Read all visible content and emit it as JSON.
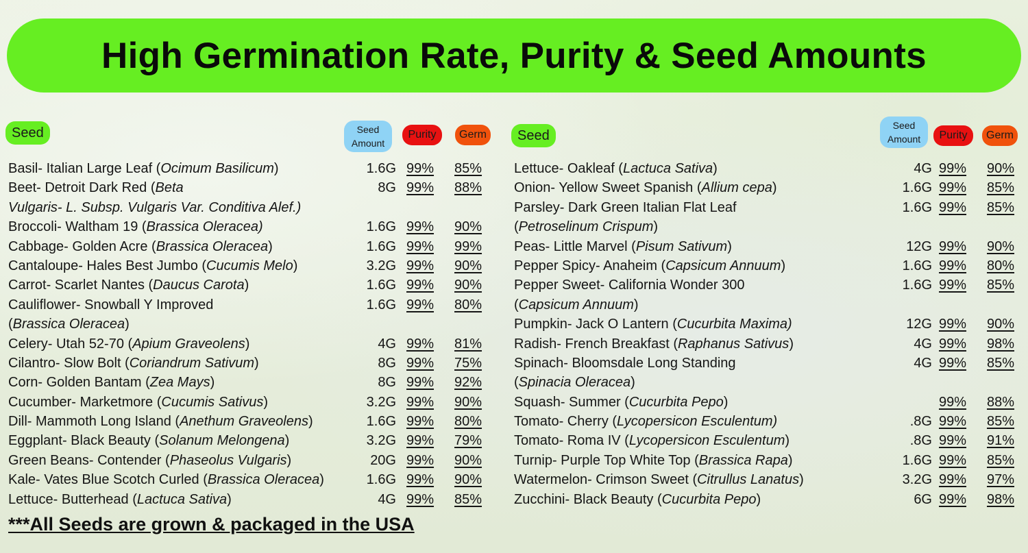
{
  "title": "High Germination Rate, Purity & Seed Amounts",
  "headers": {
    "seed": "Seed",
    "amount": "Seed Amount",
    "purity": "Purity",
    "germ": "Germ"
  },
  "colors": {
    "title_bg": "#66ee22",
    "seed_pill": "#66ee22",
    "amount_pill": "#8fd3f5",
    "purity_pill": "#e81111",
    "germ_pill": "#f0520c"
  },
  "left": [
    {
      "l1": [
        [
          "Basil- Italian Large Leaf (",
          0
        ],
        [
          "Ocimum Basilicum",
          1
        ],
        [
          ")",
          0
        ]
      ],
      "amount": "1.6G",
      "purity": "99%",
      "germ": "85%"
    },
    {
      "l1": [
        [
          "Beet- Detroit Dark Red (",
          0
        ],
        [
          "Beta",
          1
        ]
      ],
      "l2": [
        [
          "Vulgaris- L. Subsp. Vulgaris Var. Conditiva Alef.)",
          1
        ]
      ],
      "amount": "8G",
      "purity": "99%",
      "germ": "88%"
    },
    {
      "l1": [
        [
          "Broccoli- Waltham 19 (",
          0
        ],
        [
          "Brassica Oleracea)",
          1
        ]
      ],
      "amount": "1.6G",
      "purity": "99%",
      "germ": "90%"
    },
    {
      "l1": [
        [
          "Cabbage- Golden Acre (",
          0
        ],
        [
          "Brassica Oleracea",
          1
        ],
        [
          ")",
          0
        ]
      ],
      "amount": "1.6G",
      "purity": "99%",
      "germ": "99%"
    },
    {
      "l1": [
        [
          "Cantaloupe- Hales Best Jumbo (",
          0
        ],
        [
          "Cucumis Melo",
          1
        ],
        [
          ")",
          0
        ]
      ],
      "amount": "3.2G",
      "purity": "99%",
      "germ": "90%"
    },
    {
      "l1": [
        [
          "Carrot- Scarlet Nantes (",
          0
        ],
        [
          "Daucus Carota",
          1
        ],
        [
          ")",
          0
        ]
      ],
      "amount": "1.6G",
      "purity": "99%",
      "germ": "90%"
    },
    {
      "l1": [
        [
          "Cauliflower- Snowball Y Improved",
          0
        ]
      ],
      "l2": [
        [
          "(",
          0
        ],
        [
          "Brassica Oleracea",
          1
        ],
        [
          ")",
          0
        ]
      ],
      "amount": "1.6G",
      "purity": "99%",
      "germ": "80%"
    },
    {
      "l1": [
        [
          "Celery- Utah 52-70 (",
          0
        ],
        [
          "Apium Graveolens",
          1
        ],
        [
          ")",
          0
        ]
      ],
      "amount": "4G",
      "purity": "99%",
      "germ": "81%"
    },
    {
      "l1": [
        [
          "Cilantro- Slow Bolt (",
          0
        ],
        [
          "Coriandrum Sativum",
          1
        ],
        [
          ")",
          0
        ]
      ],
      "amount": "8G",
      "purity": "99%",
      "germ": "75%"
    },
    {
      "l1": [
        [
          "Corn- Golden Bantam (",
          0
        ],
        [
          "Zea Mays",
          1
        ],
        [
          ")",
          0
        ]
      ],
      "amount": "8G",
      "purity": "99%",
      "germ": "92%"
    },
    {
      "l1": [
        [
          "Cucumber- Marketmore (",
          0
        ],
        [
          "Cucumis Sativus",
          1
        ],
        [
          ")",
          0
        ]
      ],
      "amount": "3.2G",
      "purity": "99%",
      "germ": "90%"
    },
    {
      "l1": [
        [
          "Dill- Mammoth Long Island (",
          0
        ],
        [
          "Anethum Graveolens",
          1
        ],
        [
          ")",
          0
        ]
      ],
      "amount": "1.6G",
      "purity": "99%",
      "germ": "80%"
    },
    {
      "l1": [
        [
          "Eggplant- Black Beauty (",
          0
        ],
        [
          "Solanum Melongena",
          1
        ],
        [
          ")",
          0
        ]
      ],
      "amount": "3.2G",
      "purity": "99%",
      "germ": "79%"
    },
    {
      "l1": [
        [
          "Green Beans- Contender (",
          0
        ],
        [
          "Phaseolus Vulgaris",
          1
        ],
        [
          ")",
          0
        ]
      ],
      "amount": "20G",
      "purity": "99%",
      "germ": "90%"
    },
    {
      "l1": [
        [
          "Kale- Vates Blue Scotch Curled (",
          0
        ],
        [
          "Brassica Oleracea",
          1
        ],
        [
          ")",
          0
        ]
      ],
      "amount": "1.6G",
      "purity": "99%",
      "germ": "90%"
    },
    {
      "l1": [
        [
          "Lettuce- Butterhead (",
          0
        ],
        [
          "Lactuca Sativa",
          1
        ],
        [
          ")",
          0
        ]
      ],
      "amount": "4G",
      "purity": "99%",
      "germ": "85%"
    }
  ],
  "right": [
    {
      "l1": [
        [
          "Lettuce- Oakleaf (",
          0
        ],
        [
          "Lactuca Sativa",
          1
        ],
        [
          ")",
          0
        ]
      ],
      "amount": "4G",
      "purity": "99%",
      "germ": "90%"
    },
    {
      "l1": [
        [
          "Onion- Yellow Sweet Spanish (",
          0
        ],
        [
          "Allium cepa",
          1
        ],
        [
          ")",
          0
        ]
      ],
      "amount": "1.6G",
      "purity": "99%",
      "germ": "85%"
    },
    {
      "l1": [
        [
          "Parsley- Dark Green Italian Flat Leaf",
          0
        ]
      ],
      "l2": [
        [
          "(",
          0
        ],
        [
          "Petroselinum Crispum",
          1
        ],
        [
          ")",
          0
        ]
      ],
      "amount": "1.6G",
      "purity": "99%",
      "germ": "85%"
    },
    {
      "l1": [
        [
          "Peas- Little Marvel (",
          0
        ],
        [
          "Pisum Sativum",
          1
        ],
        [
          ")",
          0
        ]
      ],
      "amount": "12G",
      "purity": "99%",
      "germ": "90%"
    },
    {
      "l1": [
        [
          "Pepper Spicy- Anaheim (",
          0
        ],
        [
          "Capsicum Annuum",
          1
        ],
        [
          ")",
          0
        ]
      ],
      "amount": "1.6G",
      "purity": "99%",
      "germ": "80%"
    },
    {
      "l1": [
        [
          "Pepper Sweet- California Wonder 300",
          0
        ]
      ],
      "l2": [
        [
          "(",
          0
        ],
        [
          "Capsicum Annuum",
          1
        ],
        [
          ")",
          0
        ]
      ],
      "amount": "1.6G",
      "purity": "99%",
      "germ": "85%"
    },
    {
      "l1": [
        [
          "Pumpkin- Jack O Lantern (",
          0
        ],
        [
          "Cucurbita Maxima)",
          1
        ]
      ],
      "amount": "12G",
      "purity": "99%",
      "germ": "90%"
    },
    {
      "l1": [
        [
          "Radish- French Breakfast (",
          0
        ],
        [
          "Raphanus Sativus",
          1
        ],
        [
          ")",
          0
        ]
      ],
      "amount": "4G",
      "purity": "99%",
      "germ": "98%"
    },
    {
      "l1": [
        [
          "Spinach- Bloomsdale Long Standing",
          0
        ]
      ],
      "l2": [
        [
          "(",
          0
        ],
        [
          "Spinacia Oleracea",
          1
        ],
        [
          ")",
          0
        ]
      ],
      "amount": "4G",
      "purity": "99%",
      "germ": "85%"
    },
    {
      "l1": [
        [
          "Squash- Summer (",
          0
        ],
        [
          "Cucurbita Pepo",
          1
        ],
        [
          ")",
          0
        ]
      ],
      "amount": "",
      "purity": "99%",
      "germ": "88%"
    },
    {
      "l1": [
        [
          "Tomato- Cherry (",
          0
        ],
        [
          "Lycopersicon Esculentum)",
          1
        ]
      ],
      "amount": ".8G",
      "purity": "99%",
      "germ": "85%"
    },
    {
      "l1": [
        [
          "Tomato- Roma IV  (",
          0
        ],
        [
          "Lycopersicon Esculentum",
          1
        ],
        [
          ")",
          0
        ]
      ],
      "amount": ".8G",
      "purity": "99%",
      "germ": "91%"
    },
    {
      "l1": [
        [
          "Turnip- Purple Top White Top (",
          0
        ],
        [
          "Brassica Rapa",
          1
        ],
        [
          ")",
          0
        ]
      ],
      "amount": "1.6G",
      "purity": "99%",
      "germ": "85%"
    },
    {
      "l1": [
        [
          "Watermelon- Crimson Sweet (",
          0
        ],
        [
          "Citrullus Lanatus",
          1
        ],
        [
          ")",
          0
        ]
      ],
      "amount": "3.2G",
      "purity": "99%",
      "germ": "97%"
    },
    {
      "l1": [
        [
          "Zucchini-  Black Beauty (",
          0
        ],
        [
          "Cucurbita Pepo",
          1
        ],
        [
          ")",
          0
        ]
      ],
      "amount": "6G",
      "purity": "99%",
      "germ": "98%"
    }
  ],
  "footer": "***All Seeds are grown & packaged in the USA"
}
